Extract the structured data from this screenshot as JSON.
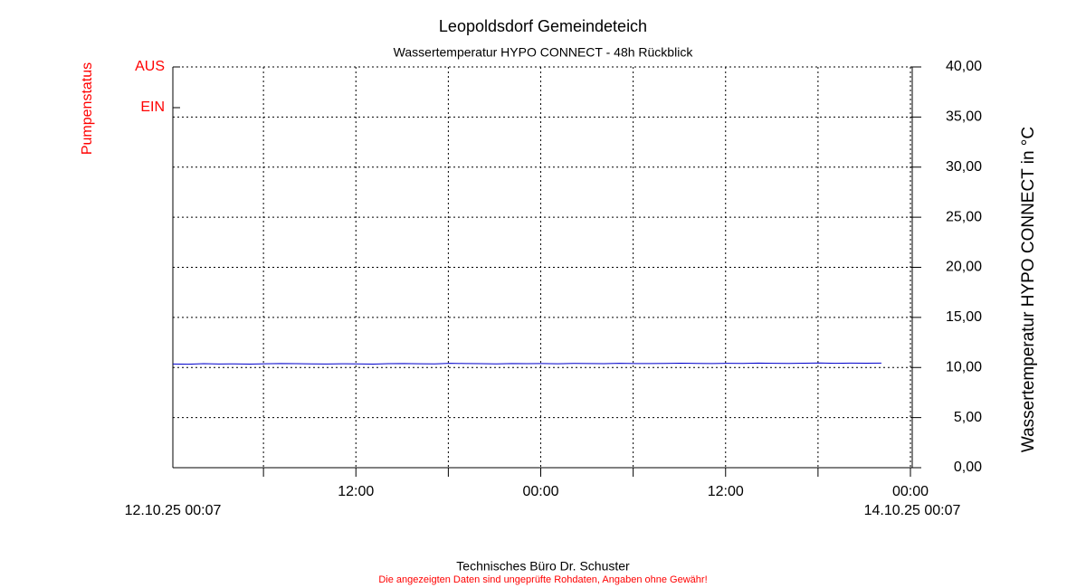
{
  "chart_data": {
    "type": "line",
    "title": "Leopoldsdorf Gemeindeteich",
    "subtitle": "Wassertemperatur HYPO CONNECT - 48h Rückblick",
    "y_label": "Wassertemperatur HYPO CONNECT in °C",
    "pump_axis": {
      "label": "Pumpenstatus",
      "ticks": [
        "AUS",
        "EIN"
      ],
      "color": "#ff0000"
    },
    "footer": "Technisches Büro Dr. Schuster",
    "disclaimer": "Die angezeigten Daten sind ungeprüfte Rohdaten, Angaben ohne Gewähr!",
    "xlim": [
      0,
      48
    ],
    "xlim_labels": [
      "12.10.25 00:07",
      "14.10.25 00:07"
    ],
    "xticks": [
      {
        "value": 11.883,
        "label": "12:00"
      },
      {
        "value": 23.883,
        "label": "00:00"
      },
      {
        "value": 35.883,
        "label": "12:00"
      },
      {
        "value": 47.883,
        "label": "00:00"
      }
    ],
    "xminor_ticks": [
      5.883,
      17.883,
      29.883,
      41.883
    ],
    "ylim": [
      0,
      40
    ],
    "yticks": [
      {
        "value": 0,
        "label": "0,00"
      },
      {
        "value": 5,
        "label": "5,00"
      },
      {
        "value": 10,
        "label": "10,00"
      },
      {
        "value": 15,
        "label": "15,00"
      },
      {
        "value": 20,
        "label": "20,00"
      },
      {
        "value": 25,
        "label": "25,00"
      },
      {
        "value": 30,
        "label": "30,00"
      },
      {
        "value": 35,
        "label": "35,00"
      },
      {
        "value": 40,
        "label": "40,00"
      }
    ],
    "grid": true,
    "x": [
      0,
      1,
      2,
      3,
      4,
      5,
      6,
      7,
      8,
      9,
      10,
      11,
      12,
      13,
      14,
      15,
      16,
      17,
      18,
      19,
      20,
      21,
      22,
      23,
      24,
      25,
      26,
      27,
      28,
      29,
      30,
      31,
      32,
      33,
      34,
      35,
      36,
      37,
      38,
      39,
      40,
      41,
      42,
      43,
      44,
      45,
      46
    ],
    "series": [
      {
        "name": "Wassertemperatur HYPO CONNECT",
        "color": "#0000cc",
        "values": [
          10.35,
          10.33,
          10.38,
          10.35,
          10.36,
          10.34,
          10.37,
          10.4,
          10.38,
          10.36,
          10.35,
          10.37,
          10.36,
          10.34,
          10.38,
          10.4,
          10.37,
          10.36,
          10.42,
          10.39,
          10.38,
          10.36,
          10.4,
          10.38,
          10.39,
          10.37,
          10.41,
          10.4,
          10.38,
          10.42,
          10.4,
          10.39,
          10.41,
          10.43,
          10.41,
          10.4,
          10.42,
          10.41,
          10.44,
          10.42,
          10.41,
          10.43,
          10.45,
          10.42,
          10.44,
          10.43,
          10.44
        ]
      }
    ]
  }
}
